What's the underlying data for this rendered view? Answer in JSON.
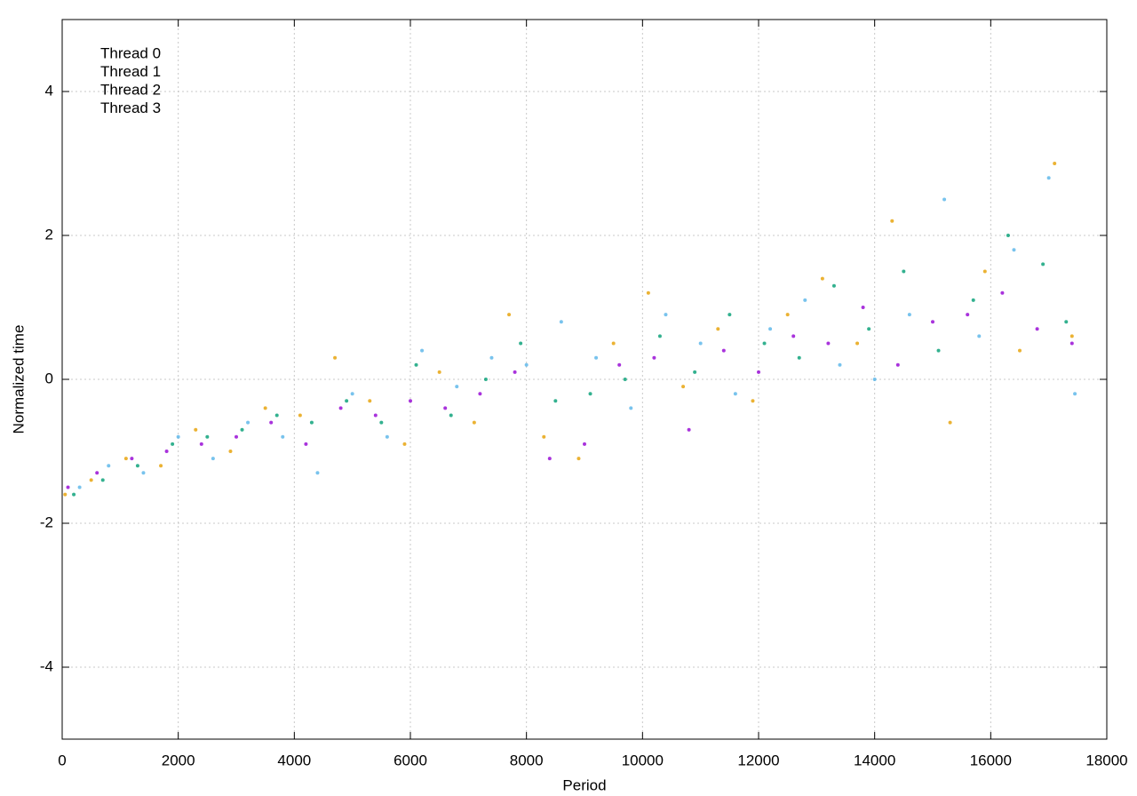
{
  "chart_data": {
    "type": "scatter",
    "x_label": "Period",
    "y_label": "Normalized time",
    "xlim": [
      0,
      18000
    ],
    "ylim": [
      -5,
      5
    ],
    "xticks": [
      0,
      2000,
      4000,
      6000,
      8000,
      10000,
      12000,
      14000,
      16000,
      18000
    ],
    "yticks": [
      -4,
      -2,
      0,
      2,
      4
    ],
    "grid": true,
    "legend": "upper-left",
    "series": [
      {
        "name": "Thread 0",
        "color": "#9400d3",
        "x": [
          100,
          600,
          1200,
          1800,
          2400,
          3000,
          3600,
          4200,
          4800,
          5400,
          6000,
          6600,
          7200,
          7800,
          8400,
          9000,
          9600,
          10200,
          10800,
          11400,
          12000,
          12600,
          13200,
          13800,
          14400,
          15000,
          15600,
          16200,
          16800,
          17400
        ],
        "values": [
          -1.5,
          -1.3,
          -1.1,
          -1.0,
          -0.9,
          -0.8,
          -0.6,
          -0.9,
          -0.4,
          -0.5,
          -0.3,
          -0.4,
          -0.2,
          0.1,
          -1.1,
          -0.9,
          0.2,
          0.3,
          -0.7,
          0.4,
          0.1,
          0.6,
          0.5,
          1.0,
          0.2,
          0.8,
          0.9,
          1.2,
          0.7,
          0.5
        ]
      },
      {
        "name": "Thread 1",
        "color": "#009e73",
        "x": [
          200,
          700,
          1300,
          1900,
          2500,
          3100,
          3700,
          4300,
          4900,
          5500,
          6100,
          6700,
          7300,
          7900,
          8500,
          9100,
          9700,
          10300,
          10900,
          11500,
          12100,
          12700,
          13300,
          13900,
          14500,
          15100,
          15700,
          16300,
          16900,
          17300
        ],
        "values": [
          -1.6,
          -1.4,
          -1.2,
          -0.9,
          -0.8,
          -0.7,
          -0.5,
          -0.6,
          -0.3,
          -0.6,
          0.2,
          -0.5,
          0.0,
          0.5,
          -0.3,
          -0.2,
          0.0,
          0.6,
          0.1,
          0.9,
          0.5,
          0.3,
          1.3,
          0.7,
          1.5,
          0.4,
          1.1,
          2.0,
          1.6,
          0.8
        ]
      },
      {
        "name": "Thread 2",
        "color": "#56b4e9",
        "x": [
          300,
          800,
          1400,
          2000,
          2600,
          3200,
          3800,
          4400,
          5000,
          5600,
          6200,
          6800,
          7400,
          8000,
          8600,
          9200,
          9800,
          10400,
          11000,
          11600,
          12200,
          12800,
          13400,
          14000,
          14600,
          15200,
          15800,
          16400,
          17000,
          17450
        ],
        "values": [
          -1.5,
          -1.2,
          -1.3,
          -0.8,
          -1.1,
          -0.6,
          -0.8,
          -1.3,
          -0.2,
          -0.8,
          0.4,
          -0.1,
          0.3,
          0.2,
          0.8,
          0.3,
          -0.4,
          0.9,
          0.5,
          -0.2,
          0.7,
          1.1,
          0.2,
          0.0,
          0.9,
          2.5,
          0.6,
          1.8,
          2.8,
          -0.2
        ]
      },
      {
        "name": "Thread 3",
        "color": "#e69f00",
        "x": [
          50,
          500,
          1100,
          1700,
          2300,
          2900,
          3500,
          4100,
          4700,
          5300,
          5900,
          6500,
          7100,
          7700,
          8300,
          8900,
          9500,
          10100,
          10700,
          11300,
          11900,
          12500,
          13100,
          13700,
          14300,
          15300,
          15900,
          16500,
          17100,
          17400
        ],
        "values": [
          -1.6,
          -1.4,
          -1.1,
          -1.2,
          -0.7,
          -1.0,
          -0.4,
          -0.5,
          0.3,
          -0.3,
          -0.9,
          0.1,
          -0.6,
          0.9,
          -0.8,
          -1.1,
          0.5,
          1.2,
          -0.1,
          0.7,
          -0.3,
          0.9,
          1.4,
          0.5,
          2.2,
          -0.6,
          1.5,
          0.4,
          3.0,
          0.6
        ]
      }
    ]
  }
}
